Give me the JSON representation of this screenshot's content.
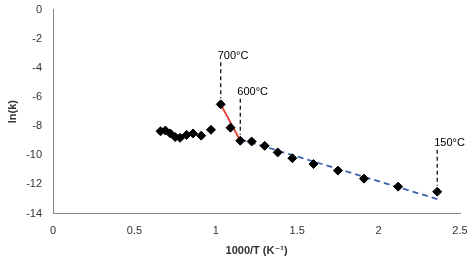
{
  "chart_data": {
    "type": "scatter",
    "x_label": "1000/T (K⁻¹)",
    "y_label": "ln(k)",
    "xlim": [
      0,
      2.5
    ],
    "xticks": [
      0,
      0.5,
      1,
      1.5,
      2,
      2.5
    ],
    "ylim": [
      -14,
      0
    ],
    "yticks": [
      -14,
      -12,
      -10,
      -8,
      -6,
      -4,
      -2,
      0
    ],
    "grid": false,
    "series": [
      {
        "type": "scatter",
        "marker": "diamond",
        "color": "#000000",
        "x": [
          0.66,
          0.69,
          0.72,
          0.75,
          0.78,
          0.82,
          0.86,
          0.91,
          0.97,
          1.03,
          1.09,
          1.15,
          1.22,
          1.3,
          1.38,
          1.47,
          1.6,
          1.75,
          1.91,
          2.12,
          2.36
        ],
        "values": [
          -8.35,
          -8.3,
          -8.5,
          -8.75,
          -8.8,
          -8.6,
          -8.5,
          -8.65,
          -8.25,
          -6.5,
          -8.1,
          -9.0,
          -9.05,
          -9.35,
          -9.8,
          -10.2,
          -10.6,
          -11.05,
          -11.6,
          -12.15,
          -12.5
        ]
      },
      {
        "type": "line",
        "line_style": "solid",
        "color": "#e03a2f",
        "x": [
          1.03,
          1.15
        ],
        "values": [
          -6.5,
          -9.0
        ]
      },
      {
        "type": "line",
        "line_style": "dashed",
        "color": "#3f62ad",
        "x": [
          1.15,
          2.36
        ],
        "values": [
          -8.9,
          -13.0
        ]
      }
    ],
    "annotations": [
      {
        "text": "700°C",
        "x": 1.03,
        "y": -6.5
      },
      {
        "text": "600°C",
        "x": 1.15,
        "y": -9.0
      },
      {
        "text": "150°C",
        "x": 2.36,
        "y": -12.5
      }
    ]
  }
}
